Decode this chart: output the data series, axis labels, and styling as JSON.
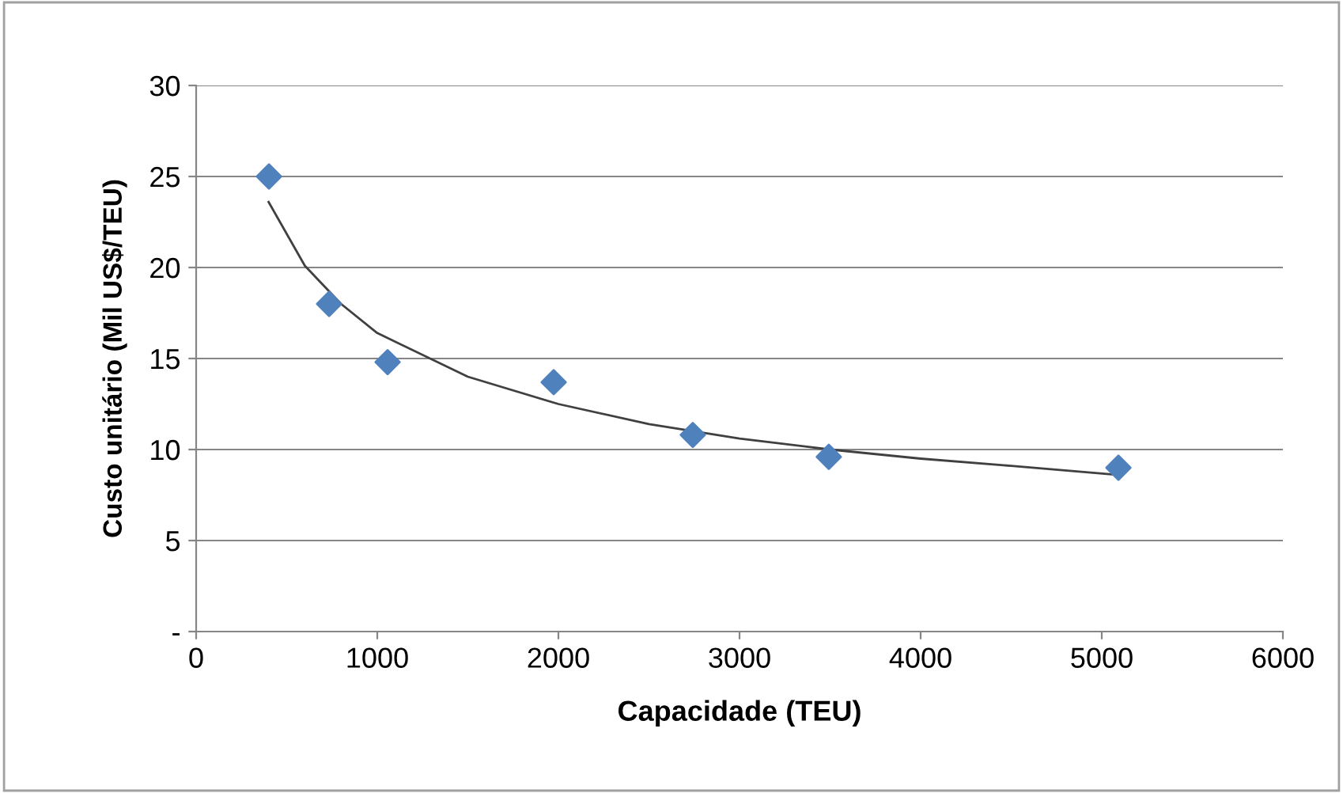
{
  "chart_data": {
    "type": "scatter",
    "xlabel": "Capacidade (TEU)",
    "ylabel": "Custo unitário (Mil US$/TEU)",
    "xlim": [
      0,
      6000
    ],
    "xticks": [
      0,
      1000,
      2000,
      3000,
      4000,
      5000,
      6000
    ],
    "ylim": [
      0,
      30
    ],
    "yticks": [
      {
        "value": 0,
        "label": "-"
      },
      5,
      10,
      15,
      20,
      25,
      30
    ],
    "grid": "y",
    "legend": false,
    "series": [
      {
        "color": "#4f81bd",
        "marker": "diamond",
        "x": [
          402,
          734,
          1057,
          1974,
          2742,
          3493,
          5092
        ],
        "values": [
          25.0,
          18.0,
          14.8,
          13.7,
          10.8,
          9.6,
          9.0
        ]
      },
      {
        "type": "line",
        "color": "#404040",
        "marker": "none",
        "line_style": "solid",
        "x": [
          400,
          600,
          800,
          1000,
          1500,
          2000,
          2500,
          3000,
          3500,
          4000,
          4500,
          5100
        ],
        "values": [
          23.6,
          20.1,
          18.0,
          16.4,
          14.0,
          12.5,
          11.4,
          10.6,
          10.0,
          9.5,
          9.1,
          8.6
        ]
      }
    ]
  }
}
